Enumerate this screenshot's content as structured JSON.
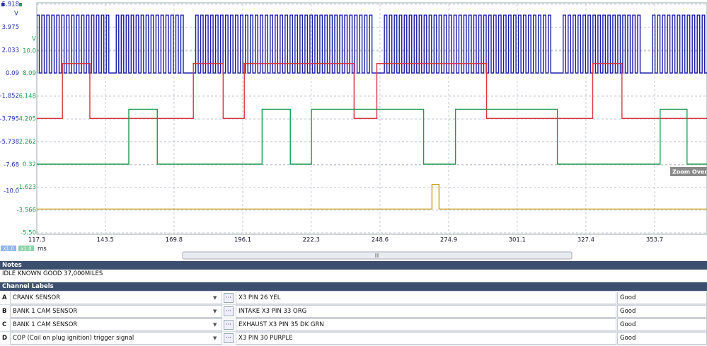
{
  "scope": {
    "y_unit_a": "V",
    "y_unit_b": "V",
    "y_ticks_a": [
      5.918,
      3.975,
      2.033,
      0.09,
      -1.852,
      -3.795,
      -5.738,
      -7.68
    ],
    "y_ticks_b": [
      {
        "value": 10,
        "label": "10.0"
      },
      8.09,
      6.148,
      4.205,
      2.262,
      0.32,
      -1.623,
      -3.566,
      {
        "value": -5.5,
        "label": "-5.50"
      }
    ],
    "extra_label": "-10.0",
    "x_ticks": [
      117.3,
      143.5,
      169.8,
      196.1,
      222.3,
      248.6,
      274.9,
      301.1,
      327.4,
      353.7
    ],
    "x_unit": "ms",
    "zoom_a": "x1.0",
    "zoom_b": "x1.0",
    "zoom_overview": "Zoom Overview",
    "channels": [
      {
        "color": "#1b1ba8",
        "axis": "a",
        "low": 0.1,
        "high": 5.0,
        "tooth_period": 1.9,
        "gaps": [
          [
            144.4,
            147.4
          ],
          [
            173.1,
            176.4
          ],
          [
            245.2,
            249.0
          ],
          [
            314.4,
            317.4
          ],
          [
            348.5,
            352.5
          ]
        ]
      },
      {
        "color": "#dd3344",
        "axis": "b",
        "low": 4.25,
        "high": 8.93,
        "edges": [
          127.1,
          137.6,
          177.2,
          188.6,
          196.7,
          238.7,
          247.4,
          289.4,
          330.0,
          341.2
        ]
      },
      {
        "color": "#1f9a50",
        "axis": "b",
        "low": 0.35,
        "high": 5.03,
        "edges": [
          152.5,
          163.4,
          203.5,
          214.3,
          222.4,
          265.3,
          277.5,
          316.5,
          355.8,
          366.1
        ]
      },
      {
        "color": "#c9a227",
        "axis": "b",
        "low": -3.48,
        "high": -1.38,
        "edges": [
          268.5,
          271.2
        ]
      }
    ]
  },
  "notes": {
    "title": "Notes",
    "text": "IDLE KNOWN GOOD 37,000MILES"
  },
  "channel_labels": {
    "title": "Channel Labels",
    "button": "···",
    "rows": [
      [
        "A",
        "CRANK SENSOR",
        "X3 PIN 26 YEL",
        "Good"
      ],
      [
        "B",
        "BANK 1 CAM SENSOR",
        "INTAKE X3 PIN 33 ORG",
        "Good"
      ],
      [
        "C",
        "BANK 1 CAM SENSOR",
        "EXHAUST X3 PIN 35 DK GRN",
        "Good"
      ],
      [
        "D",
        "COP (Coil on plug ignition) trigger signal",
        "X3 PIN 30 PURPLE",
        "Good"
      ]
    ]
  }
}
